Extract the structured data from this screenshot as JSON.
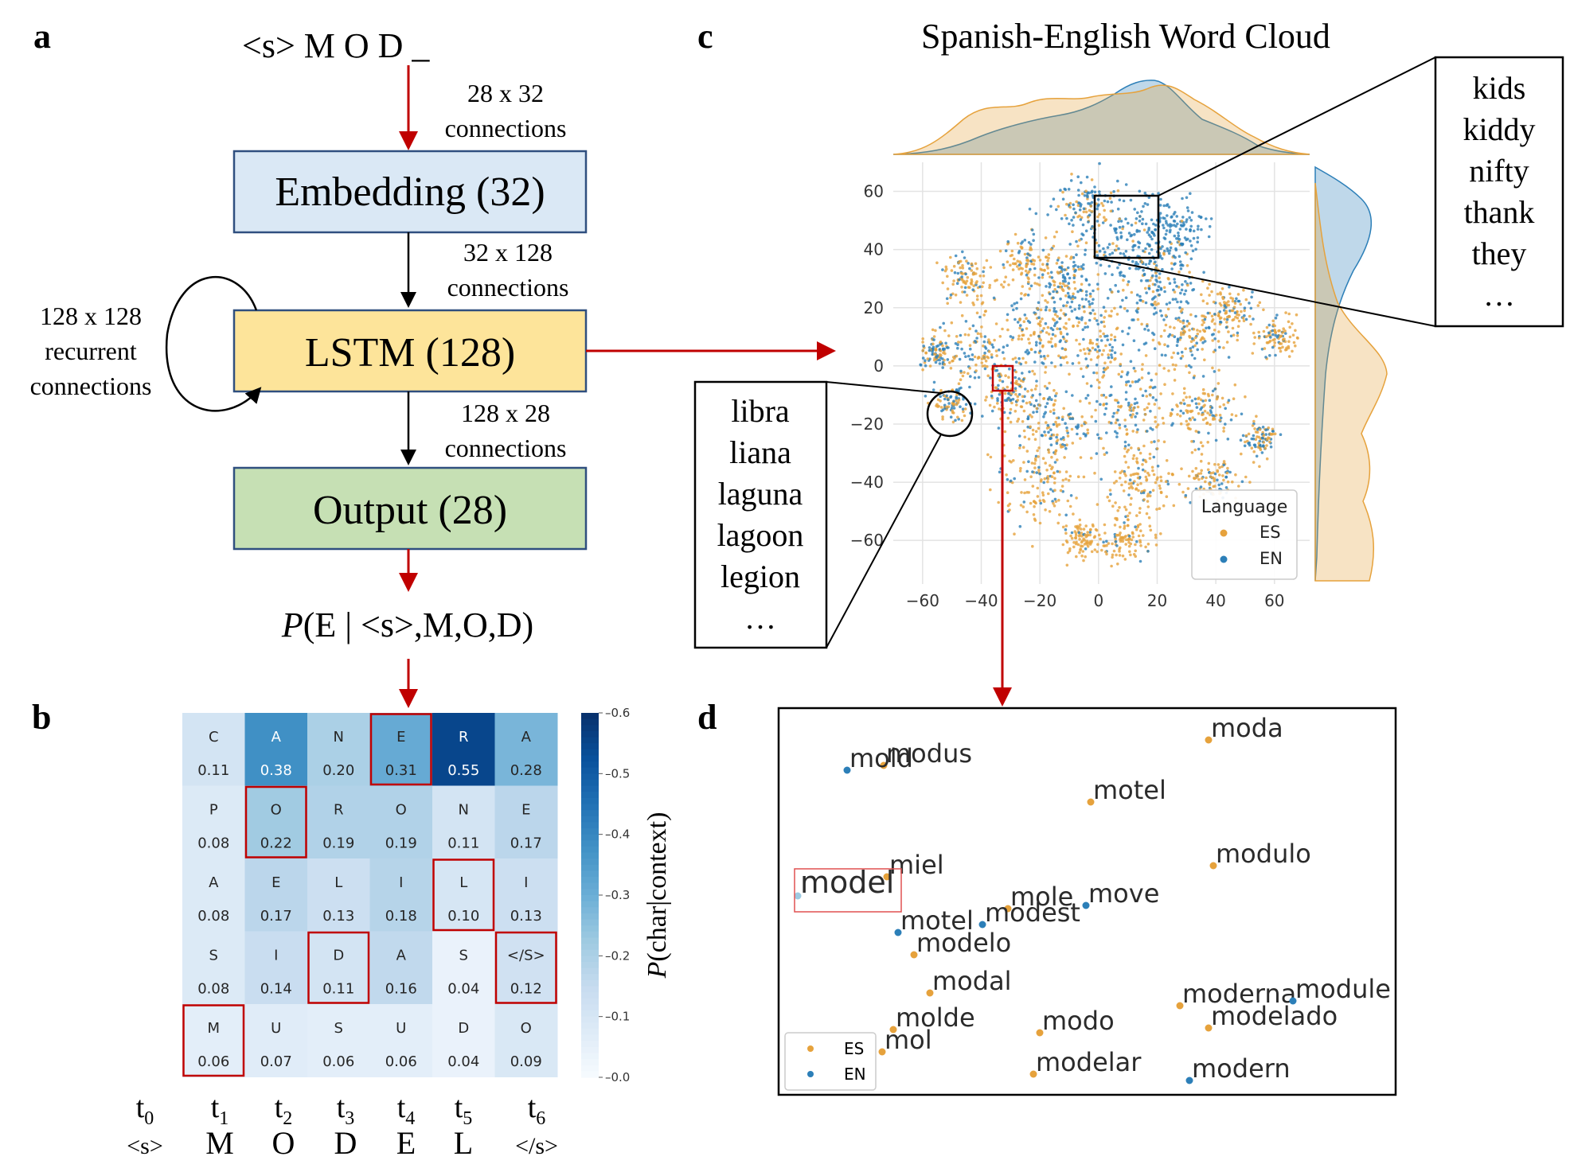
{
  "panel_labels": [
    "a",
    "b",
    "c",
    "d"
  ],
  "panel_a": {
    "input": "<s> M O D _",
    "conn1": [
      "28 x 32",
      "connections"
    ],
    "embedding": "Embedding (32)",
    "conn2": [
      "32 x 128",
      "connections"
    ],
    "recurrent": [
      "128 x 128",
      "recurrent",
      "connections"
    ],
    "lstm": "LSTM (128)",
    "conn3": [
      "128 x 28",
      "connections"
    ],
    "output": "Output (28)",
    "prob_italic": "P",
    "prob_rest": "(E | <s>,M,O,D)",
    "colors": {
      "embedding_fill": "#dae8f5",
      "lstm_fill": "#fde49a",
      "output_fill": "#c6e0b4",
      "box_stroke": "#2f4f7f",
      "arrow_red": "#c00000"
    }
  },
  "panel_b": {
    "chart_data": {
      "type": "heatmap",
      "columns": [
        {
          "label": "t",
          "sub": "0",
          "char": "<s>"
        },
        {
          "label": "t",
          "sub": "1",
          "char": "M"
        },
        {
          "label": "t",
          "sub": "2",
          "char": "O"
        },
        {
          "label": "t",
          "sub": "3",
          "char": "D"
        },
        {
          "label": "t",
          "sub": "4",
          "char": "E"
        },
        {
          "label": "t",
          "sub": "5",
          "char": "L"
        },
        {
          "label": "t",
          "sub": "6",
          "char": "</s>"
        }
      ],
      "cells": [
        [
          {
            "c": "C",
            "p": "0.11"
          },
          {
            "c": "A",
            "p": "0.38"
          },
          {
            "c": "N",
            "p": "0.20"
          },
          {
            "c": "E",
            "p": "0.31",
            "hl": true
          },
          {
            "c": "R",
            "p": "0.55"
          },
          {
            "c": "A",
            "p": "0.28"
          }
        ],
        [
          {
            "c": "P",
            "p": "0.08"
          },
          {
            "c": "O",
            "p": "0.22",
            "hl": true
          },
          {
            "c": "R",
            "p": "0.19"
          },
          {
            "c": "O",
            "p": "0.19"
          },
          {
            "c": "N",
            "p": "0.11"
          },
          {
            "c": "E",
            "p": "0.17"
          }
        ],
        [
          {
            "c": "A",
            "p": "0.08"
          },
          {
            "c": "E",
            "p": "0.17"
          },
          {
            "c": "L",
            "p": "0.13"
          },
          {
            "c": "I",
            "p": "0.18"
          },
          {
            "c": "L",
            "p": "0.10",
            "hl": true
          },
          {
            "c": "I",
            "p": "0.13"
          }
        ],
        [
          {
            "c": "S",
            "p": "0.08"
          },
          {
            "c": "I",
            "p": "0.14"
          },
          {
            "c": "D",
            "p": "0.11",
            "hl": true
          },
          {
            "c": "A",
            "p": "0.16"
          },
          {
            "c": "S",
            "p": "0.04"
          },
          {
            "c": "</S>",
            "p": "0.12",
            "hl": true
          }
        ],
        [
          {
            "c": "M",
            "p": "0.06",
            "hl": true
          },
          {
            "c": "U",
            "p": "0.07"
          },
          {
            "c": "S",
            "p": "0.06"
          },
          {
            "c": "U",
            "p": "0.06"
          },
          {
            "c": "D",
            "p": "0.04"
          },
          {
            "c": "O",
            "p": "0.09"
          }
        ]
      ],
      "colorbar": {
        "min": 0.0,
        "max": 0.6,
        "ticks": [
          "0.0",
          "0.1",
          "0.2",
          "0.3",
          "0.4",
          "0.5",
          "0.6"
        ],
        "label_italic": "P",
        "label_rest": "(char|context)"
      },
      "highlight_color": "#c00000"
    }
  },
  "panel_c": {
    "title": "Spanish-English Word Cloud",
    "chart_data": {
      "type": "scatter",
      "xlim": [
        -70,
        72
      ],
      "ylim": [
        -75,
        70
      ],
      "xticks": [
        "-60",
        "-40",
        "-20",
        "0",
        "20",
        "40",
        "60"
      ],
      "yticks": [
        "60",
        "40",
        "20",
        "0",
        "-20",
        "-40",
        "-60"
      ],
      "grid": true,
      "legend": {
        "title": "Language",
        "placement": "bottom-right",
        "items": [
          {
            "name": "ES",
            "color": "#e6a23c"
          },
          {
            "name": "EN",
            "color": "#2c7fb8"
          }
        ]
      },
      "marginals": "kde",
      "callout_top": [
        "kids",
        "kiddy",
        "nifty",
        "thank",
        "they",
        "…"
      ],
      "callout_left": [
        "libra",
        "liana",
        "laguna",
        "lagoon",
        "legion",
        "…"
      ]
    }
  },
  "panel_d": {
    "chart_data": {
      "type": "scatter",
      "points": [
        {
          "word": "moda",
          "lang": "ES"
        },
        {
          "word": "modus",
          "lang": "ES"
        },
        {
          "word": "mold",
          "lang": "EN"
        },
        {
          "word": "motel",
          "lang": "ES"
        },
        {
          "word": "modulo",
          "lang": "ES"
        },
        {
          "word": "miel",
          "lang": "ES"
        },
        {
          "word": "model",
          "lang": "EN",
          "highlight": true
        },
        {
          "word": "mole",
          "lang": "ES"
        },
        {
          "word": "move",
          "lang": "EN"
        },
        {
          "word": "modest",
          "lang": "EN"
        },
        {
          "word": "motel",
          "lang": "EN"
        },
        {
          "word": "modelo",
          "lang": "ES"
        },
        {
          "word": "modal",
          "lang": "ES"
        },
        {
          "word": "moderna",
          "lang": "ES"
        },
        {
          "word": "module",
          "lang": "EN"
        },
        {
          "word": "modelado",
          "lang": "ES"
        },
        {
          "word": "molde",
          "lang": "ES"
        },
        {
          "word": "modo",
          "lang": "ES"
        },
        {
          "word": "mol",
          "lang": "ES"
        },
        {
          "word": "modelar",
          "lang": "ES"
        },
        {
          "word": "modern",
          "lang": "EN"
        }
      ],
      "legend": [
        {
          "name": "ES",
          "color": "#e6a23c"
        },
        {
          "name": "EN",
          "color": "#2c7fb8"
        }
      ]
    }
  }
}
